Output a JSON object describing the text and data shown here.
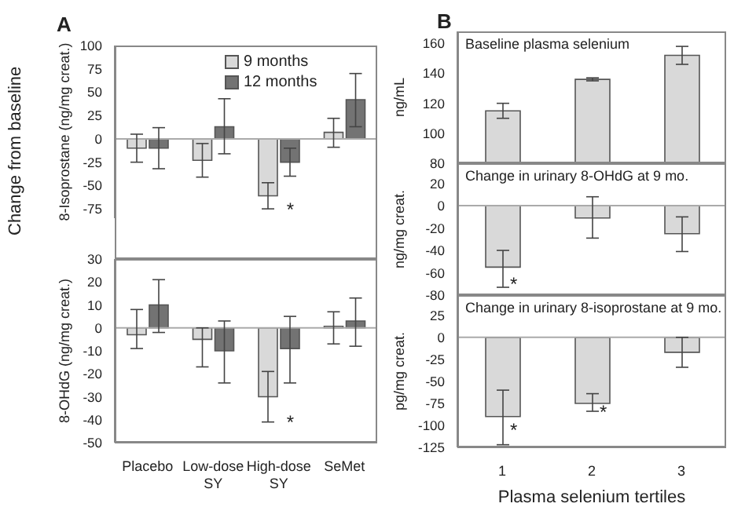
{
  "chart_data": [
    {
      "type": "bar",
      "categories": [
        "Placebo",
        "Low-dose SY",
        "High-dose SY",
        "SeMet"
      ],
      "ylabel": "8-Isoprostane (ng/mg creat.)",
      "ylim": [
        -85,
        100
      ],
      "yticks": [
        -75,
        -50,
        -25,
        0,
        25,
        50,
        75,
        100
      ],
      "tick_labels": "y",
      "legend": "top",
      "ref_lines": [
        {
          "axis": "y",
          "value": 0
        }
      ],
      "series": [
        {
          "name": "9 months",
          "color": "#d9d9d9",
          "values": [
            -10,
            -23,
            -61,
            7
          ],
          "errors": [
            [
              -25,
              5
            ],
            [
              -41,
              -5
            ],
            [
              -75,
              -47
            ],
            [
              -9,
              22
            ]
          ]
        },
        {
          "name": "12 months",
          "color": "#737373",
          "values": [
            -10,
            13,
            -25,
            42
          ],
          "errors": [
            [
              -32,
              12
            ],
            [
              -16,
              43
            ],
            [
              -40,
              -10
            ],
            [
              13,
              70
            ]
          ]
        }
      ],
      "annotations": [
        "A",
        "Change from baseline",
        {
          "text": "*",
          "x": "High-dose SY",
          "y": -75
        }
      ]
    },
    {
      "type": "bar",
      "categories": [
        "Placebo",
        "Low-dose SY",
        "High-dose SY",
        "SeMet"
      ],
      "ylabel": "8-OHdG (ng/mg creat.)",
      "ylim": [
        -50,
        30
      ],
      "yticks": [
        -50,
        -40,
        -30,
        -20,
        -10,
        0,
        10,
        20,
        30
      ],
      "ref_lines": [
        {
          "axis": "y",
          "value": 0
        }
      ],
      "series": [
        {
          "color": "#d9d9d9",
          "values": [
            -3,
            -5,
            -30,
            0
          ],
          "errors": [
            [
              -9,
              8
            ],
            [
              -17,
              0
            ],
            [
              -41,
              -19
            ],
            [
              -7,
              7
            ]
          ]
        },
        {
          "color": "#737373",
          "values": [
            10,
            -10,
            -9,
            3
          ],
          "errors": [
            [
              -2,
              21
            ],
            [
              -24,
              3
            ],
            [
              -24,
              5
            ],
            [
              -8,
              13
            ]
          ]
        }
      ],
      "annotations": [
        {
          "text": "*",
          "x": "High-dose SY",
          "y": -41
        }
      ]
    },
    {
      "type": "bar",
      "title": "Baseline plasma selenium",
      "categories": [
        "1",
        "2",
        "3"
      ],
      "ylabel": "ng/mL",
      "ylim": [
        80,
        168
      ],
      "yticks": [
        80,
        100,
        120,
        140,
        160
      ],
      "tick_labels": "y",
      "series": [
        {
          "color": "#d9d9d9",
          "values": [
            115,
            136,
            152
          ],
          "errors": [
            [
              110,
              120
            ],
            [
              135,
              137
            ],
            [
              146,
              158
            ]
          ]
        }
      ],
      "annotations": [
        "B"
      ]
    },
    {
      "type": "bar",
      "title": "Change in urinary 8-OHdG at 9 mo.",
      "categories": [
        "1",
        "2",
        "3"
      ],
      "ylabel": "ng/mg creat.",
      "ylim": [
        -80,
        38
      ],
      "yticks": [
        -80,
        -60,
        -40,
        -20,
        0,
        20
      ],
      "tick_labels": "y",
      "ref_lines": [
        {
          "axis": "y",
          "value": 0
        }
      ],
      "series": [
        {
          "color": "#d9d9d9",
          "values": [
            -55,
            -11,
            -25
          ],
          "errors": [
            [
              -73,
              -40
            ],
            [
              -29,
              8
            ],
            [
              -41,
              -10
            ]
          ]
        }
      ],
      "annotations": [
        {
          "text": "*",
          "x": "1",
          "y": -70
        }
      ]
    },
    {
      "type": "bar",
      "title": "Change in urinary 8-isoprostane at 9 mo.",
      "categories": [
        "1",
        "2",
        "3"
      ],
      "ylabel": "pg/mg creat.",
      "xlabel": "Plasma selenium tertiles",
      "ylim": [
        -125,
        48
      ],
      "yticks": [
        -125,
        -100,
        -75,
        -50,
        -25,
        0,
        25
      ],
      "ref_lines": [
        {
          "axis": "y",
          "value": 0
        }
      ],
      "series": [
        {
          "color": "#d9d9d9",
          "values": [
            -90,
            -75,
            -17
          ],
          "errors": [
            [
              -122,
              -60
            ],
            [
              -84,
              -64
            ],
            [
              -34,
              0
            ]
          ]
        }
      ],
      "annotations": [
        {
          "text": "*",
          "x": "1",
          "y": -105
        },
        {
          "text": "*",
          "x": "2",
          "y": -84
        }
      ]
    }
  ]
}
